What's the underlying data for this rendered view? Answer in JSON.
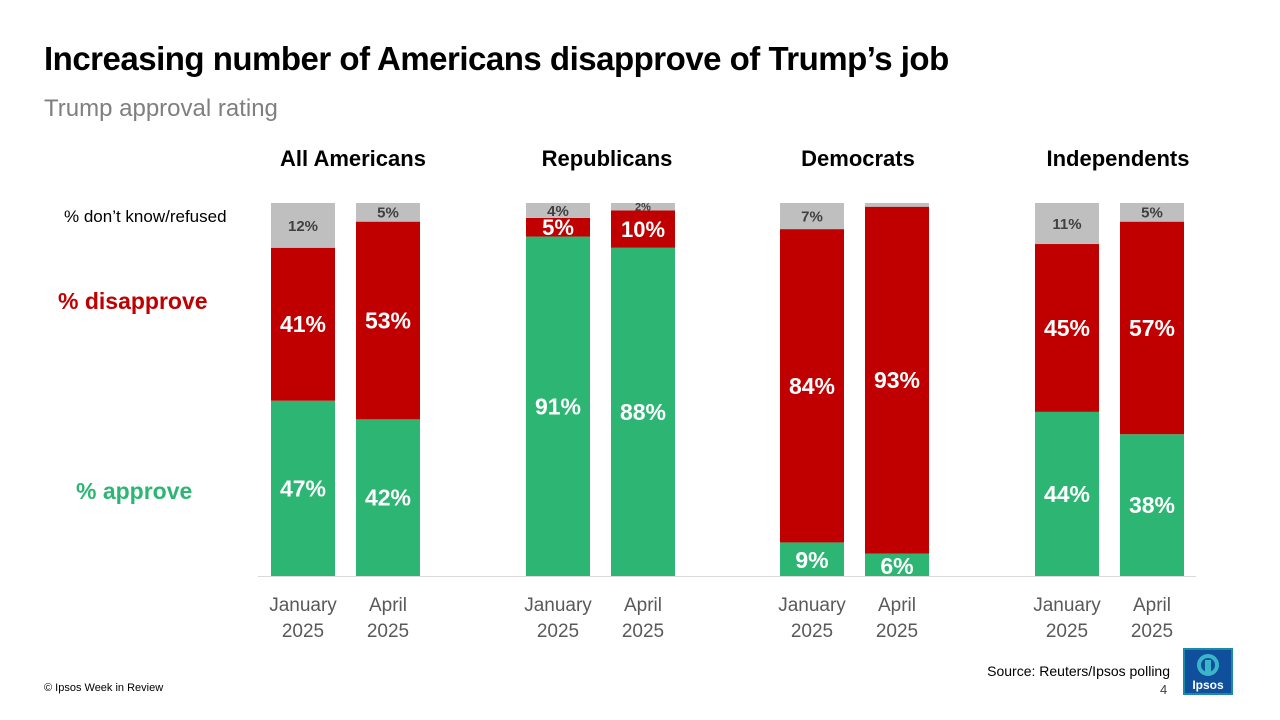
{
  "title": "Increasing number of Americans disapprove of Trump’s job",
  "subtitle": "Trump approval rating",
  "footer": {
    "copyright": "© Ipsos Week in Review",
    "source": "Source: Reuters/Ipsos polling",
    "page_number": "4",
    "logo_text": "Ipsos"
  },
  "colors": {
    "approve": "#2db673",
    "disapprove": "#c00000",
    "dont_know": "#bfbfbf",
    "axis": "#d9d9d9",
    "tick_text": "#595959"
  },
  "chart_data": {
    "type": "bar",
    "stacked": true,
    "legend": {
      "dont_know": "% don’t know/refused",
      "disapprove": "% disapprove",
      "approve": "% approve"
    },
    "ylim": [
      0,
      100
    ],
    "groups": [
      {
        "name": "All Americans",
        "bars": [
          {
            "label": [
              "January",
              "2025"
            ],
            "approve": 47,
            "disapprove": 41,
            "dont_know": 12,
            "approve_label": "47%",
            "disapprove_label": "41%",
            "dont_know_label": "12%"
          },
          {
            "label": [
              "April",
              "2025"
            ],
            "approve": 42,
            "disapprove": 53,
            "dont_know": 5,
            "approve_label": "42%",
            "disapprove_label": "53%",
            "dont_know_label": "5%"
          }
        ]
      },
      {
        "name": "Republicans",
        "bars": [
          {
            "label": [
              "January",
              "2025"
            ],
            "approve": 91,
            "disapprove": 5,
            "dont_know": 4,
            "approve_label": "91%",
            "disapprove_label": "5%",
            "dont_know_label": "4%"
          },
          {
            "label": [
              "April",
              "2025"
            ],
            "approve": 88,
            "disapprove": 10,
            "dont_know": 2,
            "approve_label": "88%",
            "disapprove_label": "10%",
            "dont_know_label": "2%"
          }
        ]
      },
      {
        "name": "Democrats",
        "bars": [
          {
            "label": [
              "January",
              "2025"
            ],
            "approve": 9,
            "disapprove": 84,
            "dont_know": 7,
            "approve_label": "9%",
            "disapprove_label": "84%",
            "dont_know_label": "7%"
          },
          {
            "label": [
              "April",
              "2025"
            ],
            "approve": 6,
            "disapprove": 93,
            "dont_know": 1,
            "approve_label": "6%",
            "disapprove_label": "93%",
            "dont_know_label": ""
          }
        ]
      },
      {
        "name": "Independents",
        "bars": [
          {
            "label": [
              "January",
              "2025"
            ],
            "approve": 44,
            "disapprove": 45,
            "dont_know": 11,
            "approve_label": "44%",
            "disapprove_label": "45%",
            "dont_know_label": "11%"
          },
          {
            "label": [
              "April",
              "2025"
            ],
            "approve": 38,
            "disapprove": 57,
            "dont_know": 5,
            "approve_label": "38%",
            "disapprove_label": "57%",
            "dont_know_label": "5%"
          }
        ]
      }
    ]
  }
}
